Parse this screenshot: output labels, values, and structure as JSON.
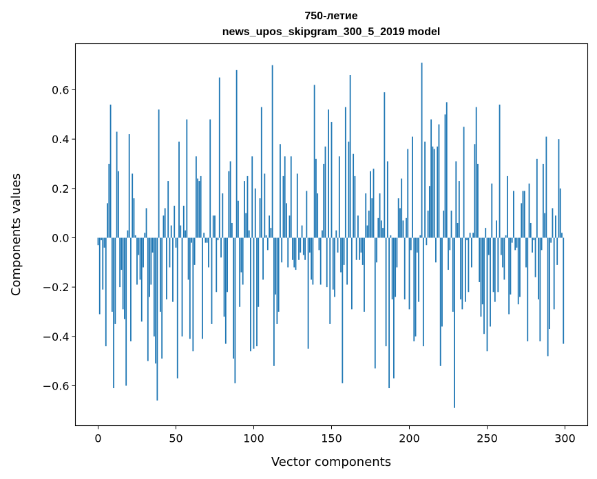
{
  "chart_data": {
    "type": "bar",
    "title": "750-летие",
    "subtitle": "news_upos_skipgram_300_5_2019 model",
    "xlabel": "Vector components",
    "ylabel": "Components values",
    "xlim": [
      -14.6,
      314.6
    ],
    "ylim": [
      -0.762,
      0.787
    ],
    "xticks": [
      "0",
      "50",
      "100",
      "150",
      "200",
      "250",
      "300"
    ],
    "yticks": [
      "−0.6",
      "−0.4",
      "−0.2",
      "0.0",
      "0.2",
      "0.4",
      "0.6"
    ],
    "grid": false,
    "bar_color": "#1f77b4",
    "values": [
      -0.03,
      -0.31,
      -0.01,
      -0.21,
      -0.04,
      -0.44,
      0.14,
      0.3,
      0.54,
      -0.3,
      -0.61,
      -0.35,
      0.43,
      0.27,
      -0.2,
      -0.13,
      -0.29,
      -0.33,
      -0.6,
      0.03,
      0.42,
      -0.42,
      0.26,
      0.16,
      0.01,
      -0.19,
      -0.07,
      -0.17,
      -0.34,
      -0.12,
      0.02,
      0.12,
      -0.5,
      -0.24,
      -0.19,
      -0.06,
      -0.4,
      -0.51,
      -0.66,
      0.52,
      -0.3,
      -0.49,
      0.09,
      0.12,
      -0.25,
      0.23,
      -0.12,
      0.05,
      -0.26,
      0.13,
      -0.04,
      -0.57,
      0.39,
      0.05,
      -0.4,
      0.13,
      0.03,
      0.48,
      -0.17,
      -0.41,
      -0.02,
      -0.46,
      -0.11,
      0.33,
      0.24,
      0.23,
      0.25,
      -0.41,
      0.02,
      -0.02,
      -0.02,
      -0.12,
      0.48,
      -0.35,
      0.09,
      0.09,
      -0.22,
      -0.01,
      0.65,
      -0.08,
      0.18,
      -0.32,
      -0.43,
      -0.22,
      0.27,
      0.31,
      0.06,
      -0.49,
      -0.59,
      0.68,
      0.15,
      -0.28,
      -0.14,
      -0.19,
      0.23,
      0.1,
      0.25,
      0.03,
      -0.46,
      0.33,
      -0.45,
      0.2,
      -0.44,
      -0.28,
      0.16,
      0.53,
      -0.17,
      0.26,
      0.01,
      -0.05,
      0.09,
      0.04,
      0.7,
      -0.52,
      -0.23,
      -0.35,
      -0.3,
      0.38,
      -0.1,
      0.25,
      0.33,
      0.14,
      -0.12,
      0.09,
      0.33,
      -0.09,
      -0.12,
      -0.13,
      0.26,
      -0.09,
      -0.06,
      0.05,
      -0.07,
      -0.09,
      0.19,
      -0.45,
      -0.06,
      -0.17,
      -0.19,
      0.62,
      0.32,
      0.18,
      -0.05,
      -0.19,
      0.03,
      0.3,
      0.37,
      -0.2,
      0.52,
      -0.35,
      0.47,
      -0.21,
      -0.24,
      0.03,
      -0.06,
      0.33,
      -0.14,
      -0.59,
      -0.11,
      0.53,
      -0.19,
      0.39,
      0.66,
      -0.29,
      0.34,
      0.25,
      -0.09,
      0.09,
      -0.09,
      -0.06,
      -0.11,
      -0.3,
      0.18,
      0.05,
      0.11,
      0.27,
      0.16,
      0.28,
      -0.53,
      -0.1,
      0.08,
      0.18,
      0.07,
      0.04,
      0.59,
      -0.44,
      0.31,
      -0.61,
      0.01,
      -0.25,
      -0.57,
      -0.24,
      -0.12,
      0.16,
      0.12,
      0.24,
      0.07,
      -0.25,
      0.08,
      0.36,
      -0.29,
      -0.05,
      0.41,
      -0.42,
      -0.4,
      -0.06,
      -0.26,
      0.01,
      0.71,
      -0.44,
      0.39,
      -0.03,
      0.11,
      0.21,
      0.48,
      0.37,
      0.36,
      -0.1,
      0.37,
      0.46,
      -0.52,
      -0.36,
      0.11,
      0.5,
      0.55,
      -0.13,
      -0.05,
      0.11,
      -0.3,
      -0.69,
      0.31,
      0.06,
      0.23,
      -0.25,
      -0.29,
      0.45,
      -0.26,
      -0.01,
      -0.22,
      0.02,
      -0.12,
      0.02,
      0.38,
      0.53,
      0.3,
      -0.18,
      -0.32,
      -0.27,
      -0.39,
      0.04,
      -0.46,
      -0.07,
      -0.36,
      0.22,
      -0.22,
      -0.26,
      0.07,
      -0.22,
      0.54,
      -0.07,
      -0.12,
      -0.17,
      0.01,
      0.25,
      -0.31,
      -0.23,
      -0.02,
      0.19,
      -0.05,
      -0.04,
      -0.27,
      -0.24,
      0.14,
      0.19,
      0.19,
      -0.12,
      -0.42,
      0.22,
      0.06,
      -0.06,
      -0.01,
      -0.16,
      0.32,
      -0.25,
      -0.42,
      -0.05,
      0.3,
      0.1,
      0.41,
      -0.48,
      -0.37,
      -0.02,
      0.12,
      -0.29,
      0.09,
      -0.11,
      0.4,
      0.2,
      0.02,
      -0.43
    ]
  }
}
